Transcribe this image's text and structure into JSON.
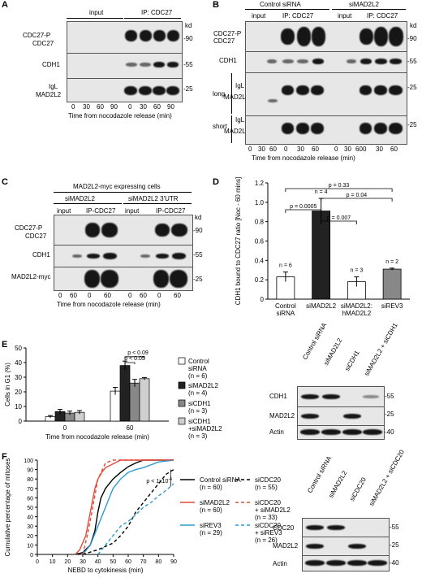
{
  "panel_labels": [
    "A",
    "B",
    "C",
    "D",
    "E",
    "F"
  ],
  "kd": "kd",
  "mw": {
    "90": "-90",
    "55": "-55",
    "25": "-25",
    "40": "-40"
  },
  "A": {
    "input": "input",
    "ip": "IP: CDC27",
    "cdc27p": "CDC27-P",
    "cdc27": "CDC27",
    "cdh1": "CDH1",
    "igl": "IgL",
    "mad2l2": "MAD2L2",
    "times": [
      "0",
      "30",
      "60",
      "90",
      "0",
      "30",
      "60",
      "90"
    ],
    "xlabel": "Time from nocodazole release (min)"
  },
  "B": {
    "control": "Control siRNA",
    "simad": "siMAD2L2",
    "input": "input",
    "ip": "IP: CDC27",
    "cdc27p": "CDC27-P",
    "cdc27": "CDC27",
    "cdh1": "CDH1",
    "long": "long",
    "short": "short",
    "igl": "IgL",
    "mad2l2": "MAD2L2",
    "times": [
      "0",
      "30",
      "60",
      "0",
      "30",
      "60",
      "0",
      "30",
      "60",
      "0",
      "30",
      "60"
    ],
    "xlabel": "Time from nocodazole release (min)"
  },
  "C": {
    "header": "MAD2L2-myc expressing cells",
    "simad": "siMAD2L2",
    "simad3": "siMAD2L2 3'UTR",
    "input": "input",
    "ip": "IP-CDC27",
    "cdc27p": "CDC27-P",
    "cdc27": "CDC27",
    "cdh1": "CDH1",
    "myc": "MAD2L2-myc",
    "times": [
      "0",
      "60",
      "0",
      "60",
      "0",
      "60",
      "0",
      "60"
    ],
    "xlabel": "Time from nocodazole release (min)"
  },
  "chart_data": [
    {
      "type": "bar",
      "panel": "D",
      "ylabel": "CDH1 bound to CDC27 ratio [Noc - 60 mins]",
      "ylim": [
        0,
        1.2
      ],
      "yticks": [
        "0",
        "0.2",
        "0.4",
        "0.6",
        "0.8",
        "1.0",
        "1.2"
      ],
      "categories": [
        "Control siRNA",
        "siMAD2L2",
        "siMAD2L2: hMAD2L2",
        "siREV3"
      ],
      "values": [
        0.23,
        0.91,
        0.18,
        0.31
      ],
      "errors": [
        0.05,
        0.13,
        0.05,
        0.01
      ],
      "n": [
        "n = 6",
        "n = 4",
        "n = 3",
        "n = 2"
      ],
      "fills": [
        "#ffffff",
        "#222222",
        "#ffffff",
        "#888888"
      ],
      "pvalues": [
        "p = 0.33",
        "p = 0.04",
        "p = 0.0005",
        "p = 0.007"
      ]
    },
    {
      "type": "bar",
      "panel": "E",
      "ylabel": "Cells in G1 (%)",
      "ylim": [
        0,
        50
      ],
      "yticks": [
        "0",
        "10",
        "20",
        "30",
        "40",
        "50"
      ],
      "categories": [
        "0",
        "60"
      ],
      "xlabel": "Time from nocodazole release (min)",
      "series": [
        {
          "name": "Control siRNA",
          "n": "(n = 6)",
          "color": "#ffffff",
          "values": [
            3,
            20.5
          ],
          "errors": [
            0.8,
            2.5
          ]
        },
        {
          "name": "siMAD2L2",
          "n": "(n = 4)",
          "color": "#222222",
          "values": [
            6.5,
            38
          ],
          "errors": [
            1.5,
            3
          ]
        },
        {
          "name": "siCDH1",
          "n": "(n = 3)",
          "color": "#888888",
          "values": [
            5.5,
            26
          ],
          "errors": [
            1.3,
            2.5
          ]
        },
        {
          "name": "siCDH1 +siMAD2L2",
          "n": "(n = 3)",
          "color": "#cfcfcf",
          "values": [
            6,
            29
          ],
          "errors": [
            1.2,
            0.8
          ]
        }
      ],
      "pvalues": [
        "p < 0.09",
        "p < 0.05"
      ]
    },
    {
      "type": "line",
      "panel": "F",
      "ylabel": "Cumulative percentage of mitoses",
      "xlabel": "NEBD to cytokinesis (min)",
      "xlim": [
        0,
        90
      ],
      "ylim": [
        0,
        100
      ],
      "xticks": [
        "0",
        "10",
        "20",
        "30",
        "40",
        "50",
        "60",
        "70",
        "80",
        "90"
      ],
      "yticks": [
        "0",
        "10",
        "20",
        "30",
        "40",
        "50",
        "60",
        "70",
        "80",
        "90",
        "100"
      ],
      "annotation": "p < 1x10^-4",
      "series": [
        {
          "name": "Control siRNA",
          "n": "(n = 60)",
          "color": "#000000",
          "dash": "none",
          "x": [
            25,
            30,
            35,
            38,
            40,
            42,
            45,
            50,
            55,
            60,
            65,
            70,
            90
          ],
          "y": [
            0,
            2,
            10,
            25,
            45,
            60,
            70,
            80,
            87,
            93,
            97,
            100,
            100
          ]
        },
        {
          "name": "siMAD2L2",
          "n": "(n = 60)",
          "color": "#e04b3a",
          "dash": "none",
          "x": [
            25,
            28,
            32,
            35,
            38,
            40,
            43,
            45,
            50,
            55,
            90
          ],
          "y": [
            0,
            5,
            20,
            45,
            70,
            80,
            88,
            92,
            96,
            100,
            100
          ]
        },
        {
          "name": "siREV3",
          "n": "(n = 29)",
          "color": "#2b9bd1",
          "dash": "none",
          "x": [
            30,
            35,
            40,
            45,
            50,
            55,
            60,
            65,
            70,
            75,
            80,
            90
          ],
          "y": [
            0,
            10,
            30,
            50,
            70,
            80,
            87,
            90,
            92,
            95,
            98,
            100
          ]
        },
        {
          "name": "siCDC20",
          "n": "(n = 55)",
          "color": "#000000",
          "dash": "4,3",
          "x": [
            30,
            40,
            50,
            55,
            60,
            65,
            70,
            75,
            80,
            85,
            90
          ],
          "y": [
            0,
            5,
            12,
            20,
            30,
            45,
            55,
            65,
            75,
            85,
            90
          ]
        },
        {
          "name": "siCDC20 + siMAD2L2",
          "n": "(n = 33)",
          "color": "#e04b3a",
          "dash": "4,3",
          "x": [
            30,
            33,
            36,
            40,
            45,
            50,
            90
          ],
          "y": [
            0,
            20,
            45,
            80,
            97,
            100,
            100
          ]
        },
        {
          "name": "siCDC20 + siREV3",
          "n": "(n = 26)",
          "color": "#2b9bd1",
          "dash": "4,3",
          "x": [
            40,
            45,
            50,
            55,
            60,
            65,
            70,
            75,
            80,
            85,
            90
          ],
          "y": [
            0,
            10,
            20,
            30,
            35,
            42,
            50,
            55,
            62,
            68,
            75
          ]
        }
      ]
    }
  ],
  "E_blot": {
    "lanes": [
      "Control siRNA",
      "siMAD2L2",
      "siCDH1",
      "siMAD2L2 + siCDH1"
    ],
    "cdh1": "CDH1",
    "mad2l2": "MAD2L2",
    "actin": "Actin"
  },
  "F_blot": {
    "lanes": [
      "Control siRNA",
      "siMAD2L2",
      "siCDC20",
      "siMAD2L2 + siCDC20"
    ],
    "cdc20": "CDC20",
    "mad2l2": "MAD2L2",
    "actin": "Actin"
  }
}
